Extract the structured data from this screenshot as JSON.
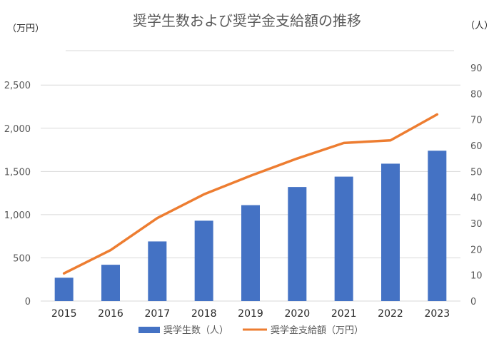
{
  "chart_data": {
    "type": "bar",
    "title": "奨学生数および奨学金支給額の推移",
    "left_axis_unit": "（万円）",
    "right_axis_unit": "（人）",
    "categories": [
      "2015",
      "2016",
      "2017",
      "2018",
      "2019",
      "2020",
      "2021",
      "2022",
      "2023"
    ],
    "series": [
      {
        "name": "奨学生数（人）",
        "type": "bar",
        "axis": "right",
        "values": [
          9,
          14,
          23,
          31,
          37,
          44,
          48,
          53,
          58
        ],
        "color": "#4472C4"
      },
      {
        "name": "奨学金支給額（万円）",
        "type": "line",
        "axis": "left",
        "values": [
          320,
          590,
          960,
          1235,
          1450,
          1650,
          1830,
          1860,
          2160
        ],
        "color": "#ED7D31"
      }
    ],
    "left_axis": {
      "ylim": [
        0,
        2700
      ],
      "ticks": [
        0,
        500,
        1000,
        1500,
        2000,
        2500
      ],
      "tick_labels": [
        "0",
        "500",
        "1,000",
        "1,500",
        "2,000",
        "2,500"
      ]
    },
    "right_axis": {
      "ylim": [
        0,
        90
      ],
      "ticks": [
        0,
        10,
        20,
        30,
        40,
        50,
        60,
        70,
        80,
        90
      ],
      "tick_labels": [
        "0",
        "10",
        "20",
        "30",
        "40",
        "50",
        "60",
        "70",
        "80",
        "90"
      ]
    },
    "grid": true,
    "legend_position": "bottom"
  }
}
